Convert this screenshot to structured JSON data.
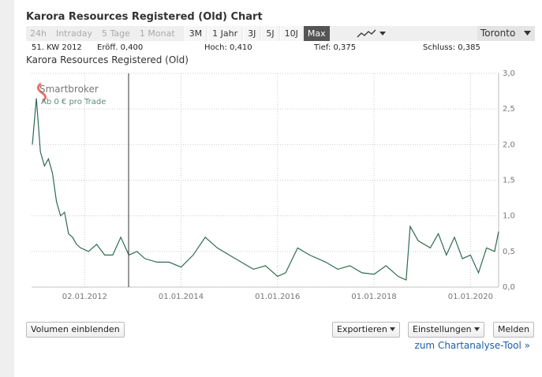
{
  "header": {
    "title": "Karora Resources Registered (Old) Chart"
  },
  "toolbar": {
    "ranges": [
      {
        "label": "24h",
        "state": "disabled"
      },
      {
        "label": "Intraday",
        "state": "disabled"
      },
      {
        "label": "5 Tage",
        "state": "disabled"
      },
      {
        "label": "1 Monat",
        "state": "disabled"
      },
      {
        "label": "3M",
        "state": "enabled"
      },
      {
        "label": "1 Jahr",
        "state": "enabled"
      },
      {
        "label": "3J",
        "state": "enabled"
      },
      {
        "label": "5J",
        "state": "enabled"
      },
      {
        "label": "10J",
        "state": "enabled"
      },
      {
        "label": "Max",
        "state": "selected"
      }
    ],
    "exchange": "Toronto"
  },
  "info": {
    "period": "51. KW 2012",
    "open": "Eröff. 0,400",
    "high": "Hoch: 0,410",
    "low": "Tief: 0,375",
    "close": "Schluss: 0,385"
  },
  "branding": {
    "name": "Smartbroker",
    "tagline": "Ab 0 € pro Trade"
  },
  "chart_data": {
    "type": "line",
    "title": "Karora Resources Registered (Old)",
    "color": "#2e6b4f",
    "grid": true,
    "x": [
      "2010-12",
      "2011-01",
      "2011-02",
      "2011-03",
      "2011-04",
      "2011-05",
      "2011-06",
      "2011-07",
      "2011-08",
      "2011-09",
      "2011-10",
      "2011-11",
      "2011-12",
      "2012-02",
      "2012-04",
      "2012-06",
      "2012-08",
      "2012-10",
      "2012-12",
      "2013-02",
      "2013-04",
      "2013-07",
      "2013-10",
      "2014-01",
      "2014-04",
      "2014-07",
      "2014-10",
      "2015-01",
      "2015-04",
      "2015-07",
      "2015-10",
      "2016-01",
      "2016-03",
      "2016-06",
      "2016-09",
      "2017-01",
      "2017-04",
      "2017-07",
      "2017-10",
      "2018-01",
      "2018-04",
      "2018-07",
      "2018-09",
      "2018-10",
      "2018-12",
      "2019-03",
      "2019-05",
      "2019-07",
      "2019-09",
      "2019-11",
      "2020-01",
      "2020-03",
      "2020-05",
      "2020-07",
      "2020-08"
    ],
    "values": [
      2.0,
      2.65,
      1.9,
      1.7,
      1.8,
      1.6,
      1.2,
      1.0,
      1.05,
      0.75,
      0.7,
      0.6,
      0.55,
      0.5,
      0.6,
      0.45,
      0.45,
      0.7,
      0.45,
      0.5,
      0.4,
      0.35,
      0.35,
      0.28,
      0.45,
      0.7,
      0.55,
      0.45,
      0.35,
      0.25,
      0.3,
      0.15,
      0.2,
      0.55,
      0.45,
      0.35,
      0.25,
      0.3,
      0.2,
      0.18,
      0.3,
      0.15,
      0.1,
      0.85,
      0.65,
      0.55,
      0.75,
      0.45,
      0.7,
      0.4,
      0.45,
      0.2,
      0.55,
      0.5,
      0.78
    ],
    "xlim": [
      "2010-12",
      "2020-08"
    ],
    "xticks": [
      {
        "value": "2012-01-02",
        "label": "02.01.2012"
      },
      {
        "value": "2014-01-01",
        "label": "01.01.2014"
      },
      {
        "value": "2016-01-01",
        "label": "01.01.2016"
      },
      {
        "value": "2018-01-01",
        "label": "01.01.2018"
      },
      {
        "value": "2020-01-01",
        "label": "01.01.2020"
      }
    ],
    "ylim": [
      0,
      3
    ],
    "yticks": [
      {
        "value": 0,
        "label": "0,0"
      },
      {
        "value": 0.5,
        "label": "0,5"
      },
      {
        "value": 1,
        "label": "1,0"
      },
      {
        "value": 1.5,
        "label": "1,5"
      },
      {
        "value": 2,
        "label": "2,0"
      },
      {
        "value": 2.5,
        "label": "2,5"
      },
      {
        "value": 3,
        "label": "3,0"
      }
    ]
  },
  "buttons": {
    "volume": "Volumen einblenden",
    "export": "Exportieren",
    "settings": "Einstellungen",
    "report": "Melden"
  },
  "link": "zum Chartanalyse-Tool »"
}
